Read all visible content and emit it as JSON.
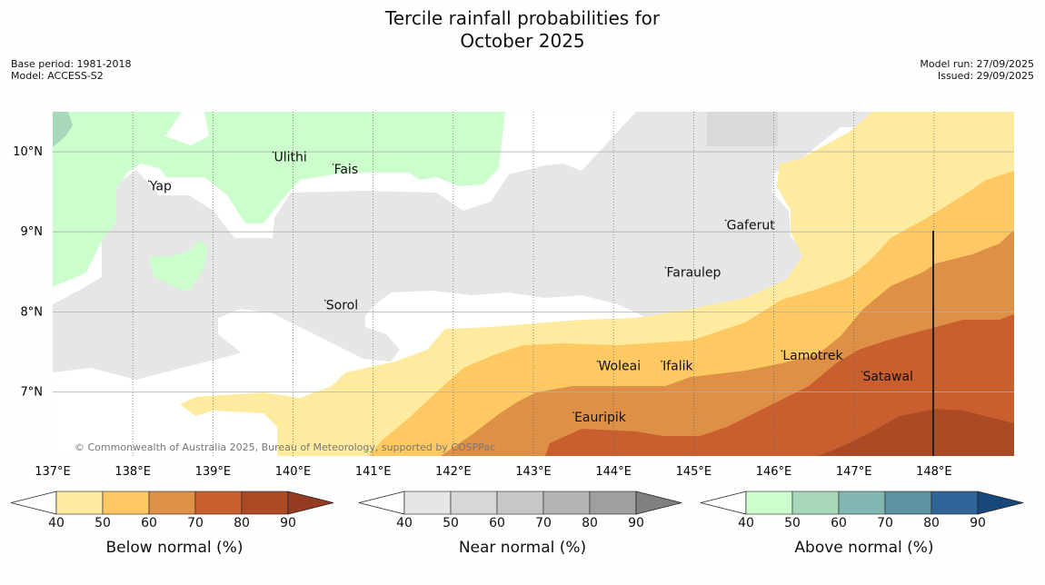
{
  "title_line1": "Tercile rainfall probabilities for",
  "title_line2": "October 2025",
  "base_period": "Base period: 1981-2018",
  "model": "Model: ACCESS-S2",
  "model_run": "Model run: 27/09/2025",
  "issued": "Issued: 29/09/2025",
  "copyright": "© Commonwealth of Australia 2025, Bureau of Meteorology, supported by COSPPac",
  "map": {
    "lon_ticks": [
      "137°E",
      "138°E",
      "139°E",
      "140°E",
      "141°E",
      "142°E",
      "143°E",
      "144°E",
      "145°E",
      "146°E",
      "147°E",
      "148°E"
    ],
    "lat_ticks": [
      "10°N",
      "9°N",
      "8°N",
      "7°N"
    ],
    "places": [
      {
        "name": "Yap",
        "lon": 138.2,
        "lat": 9.52
      },
      {
        "name": "Ulithi",
        "lon": 139.75,
        "lat": 9.88
      },
      {
        "name": "Fais",
        "lon": 140.5,
        "lat": 9.73
      },
      {
        "name": "Gaferut",
        "lon": 145.4,
        "lat": 9.03
      },
      {
        "name": "Faraulep",
        "lon": 144.65,
        "lat": 8.44
      },
      {
        "name": "Sorol",
        "lon": 140.4,
        "lat": 8.03
      },
      {
        "name": "Lamotrek",
        "lon": 146.1,
        "lat": 7.4
      },
      {
        "name": "Woleai",
        "lon": 143.8,
        "lat": 7.27
      },
      {
        "name": "Ifalik",
        "lon": 144.6,
        "lat": 7.27
      },
      {
        "name": "Satawal",
        "lon": 147.1,
        "lat": 7.14
      },
      {
        "name": "Eauripik",
        "lon": 143.5,
        "lat": 6.63
      }
    ]
  },
  "colorbars": [
    {
      "label": "Below normal (%)",
      "ticks": [
        "40",
        "50",
        "60",
        "70",
        "80",
        "90"
      ],
      "colors": [
        "#ffeba0",
        "#fec963",
        "#de9046",
        "#c95f2f",
        "#ad4a26"
      ],
      "over": "#973a22"
    },
    {
      "label": "Near normal (%)",
      "ticks": [
        "40",
        "50",
        "60",
        "70",
        "80",
        "90"
      ],
      "colors": [
        "#e6e6e6",
        "#d7d7d7",
        "#c7c7c7",
        "#b3b3b3",
        "#9f9f9f"
      ],
      "over": "#808080"
    },
    {
      "label": "Above normal (%)",
      "ticks": [
        "40",
        "50",
        "60",
        "70",
        "80",
        "90"
      ],
      "colors": [
        "#ccfdcc",
        "#a7d8bb",
        "#82b6b0",
        "#5c93a0",
        "#2e6497"
      ],
      "over": "#17487c"
    }
  ]
}
